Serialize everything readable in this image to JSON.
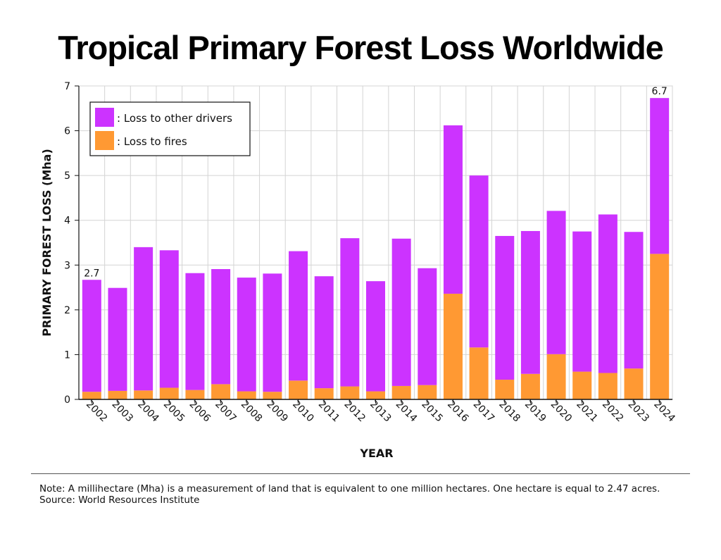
{
  "title": "Tropical Primary Forest Loss Worldwide",
  "notes": {
    "note": "Note: A millihectare (Mha) is a measurement of land that is equivalent to one million hectares. One hectare is equal to 2.47 acres.",
    "source": "Source: World Resources Institute"
  },
  "chart_data": {
    "type": "bar",
    "stacked": true,
    "xlabel": "YEAR",
    "ylabel": "PRIMARY FOREST LOSS (Mha)",
    "ylim": [
      0,
      7
    ],
    "yticks": [
      0,
      1,
      2,
      3,
      4,
      5,
      6,
      7
    ],
    "grid": true,
    "legend_position": "top-left",
    "categories": [
      "2002",
      "2003",
      "2004",
      "2005",
      "2006",
      "2007",
      "2008",
      "2009",
      "2010",
      "2011",
      "2012",
      "2013",
      "2014",
      "2015",
      "2016",
      "2017",
      "2018",
      "2019",
      "2020",
      "2021",
      "2022",
      "2023",
      "2024"
    ],
    "series": [
      {
        "name": ": Loss to fires",
        "color": "#ff9933",
        "values": [
          0.17,
          0.19,
          0.2,
          0.26,
          0.21,
          0.34,
          0.18,
          0.17,
          0.42,
          0.25,
          0.29,
          0.18,
          0.3,
          0.32,
          2.36,
          1.16,
          0.44,
          0.57,
          1.01,
          0.62,
          0.59,
          0.69,
          3.25
        ]
      },
      {
        "name": ": Loss to other drivers",
        "color": "#cc33ff",
        "values": [
          2.5,
          2.3,
          3.2,
          3.07,
          2.61,
          2.57,
          2.54,
          2.64,
          2.89,
          2.5,
          3.31,
          2.46,
          3.29,
          2.61,
          3.76,
          3.84,
          3.21,
          3.19,
          3.2,
          3.13,
          3.54,
          3.05,
          3.48
        ]
      }
    ],
    "data_labels": [
      {
        "category": "2002",
        "text": "2.7"
      },
      {
        "category": "2024",
        "text": "6.7"
      }
    ]
  }
}
